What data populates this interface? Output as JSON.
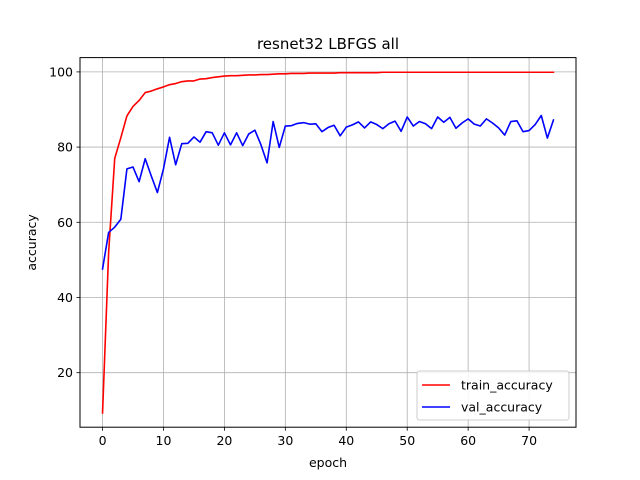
{
  "chart_data": {
    "type": "line",
    "title": "resnet32 LBFGS all",
    "xlabel": "epoch",
    "ylabel": "accuracy",
    "xlim": [
      -3.7,
      77.7
    ],
    "ylim": [
      5.5,
      103.8
    ],
    "xticks": [
      0,
      10,
      20,
      30,
      40,
      50,
      60,
      70
    ],
    "yticks": [
      20,
      40,
      60,
      80,
      100
    ],
    "grid": true,
    "legend_position": "lower right",
    "series": [
      {
        "name": "train_accuracy",
        "color": "#ff0000",
        "x": [
          0,
          1,
          2,
          3,
          4,
          5,
          6,
          7,
          8,
          9,
          10,
          11,
          12,
          13,
          14,
          15,
          16,
          17,
          18,
          19,
          20,
          21,
          22,
          23,
          24,
          25,
          26,
          27,
          28,
          29,
          30,
          31,
          32,
          33,
          34,
          35,
          36,
          37,
          38,
          39,
          40,
          41,
          42,
          43,
          44,
          45,
          46,
          47,
          48,
          49,
          50,
          51,
          52,
          53,
          54,
          55,
          56,
          57,
          58,
          59,
          60,
          61,
          62,
          63,
          64,
          65,
          66,
          67,
          68,
          69,
          70,
          71,
          72,
          73,
          74
        ],
        "values": [
          9.3,
          52,
          77,
          82.5,
          88.3,
          90.8,
          92.4,
          94.5,
          94.9,
          95.5,
          96,
          96.6,
          96.9,
          97.4,
          97.6,
          97.6,
          98.1,
          98.2,
          98.5,
          98.7,
          98.9,
          99,
          99,
          99.1,
          99.2,
          99.2,
          99.3,
          99.3,
          99.4,
          99.5,
          99.5,
          99.6,
          99.6,
          99.6,
          99.7,
          99.7,
          99.7,
          99.7,
          99.7,
          99.8,
          99.8,
          99.8,
          99.8,
          99.8,
          99.8,
          99.8,
          99.9,
          99.9,
          99.9,
          99.9,
          99.9,
          99.9,
          99.9,
          99.9,
          99.9,
          99.9,
          99.9,
          99.9,
          99.9,
          99.9,
          99.9,
          99.9,
          99.9,
          99.9,
          99.9,
          99.9,
          99.9,
          99.9,
          99.9,
          99.9,
          99.9,
          99.9,
          99.9,
          99.9,
          99.9
        ]
      },
      {
        "name": "val_accuracy",
        "color": "#0000ff",
        "x": [
          0,
          1,
          2,
          3,
          4,
          5,
          6,
          7,
          8,
          9,
          10,
          11,
          12,
          13,
          14,
          15,
          16,
          17,
          18,
          19,
          20,
          21,
          22,
          23,
          24,
          25,
          26,
          27,
          28,
          29,
          30,
          31,
          32,
          33,
          34,
          35,
          36,
          37,
          38,
          39,
          40,
          41,
          42,
          43,
          44,
          45,
          46,
          47,
          48,
          49,
          50,
          51,
          52,
          53,
          54,
          55,
          56,
          57,
          58,
          59,
          60,
          61,
          62,
          63,
          64,
          65,
          66,
          67,
          68,
          69,
          70,
          71,
          72,
          73,
          74
        ],
        "values": [
          47.6,
          57.3,
          58.7,
          60.8,
          74.2,
          74.7,
          70.8,
          76.9,
          72.3,
          67.9,
          74.2,
          82.6,
          75.3,
          80.9,
          81,
          82.7,
          81.3,
          84.1,
          83.8,
          80.5,
          83.8,
          80.6,
          83.8,
          80.4,
          83.5,
          84.5,
          80.6,
          75.8,
          86.8,
          79.9,
          85.6,
          85.7,
          86.3,
          86.5,
          86.1,
          86.2,
          84.1,
          85.2,
          85.8,
          83,
          85.3,
          85.9,
          86.7,
          85.1,
          86.7,
          86,
          84.9,
          86.2,
          86.9,
          84.2,
          88,
          85.6,
          86.8,
          86.2,
          84.9,
          88,
          86.6,
          87.9,
          85,
          86.4,
          87.5,
          86.1,
          85.6,
          87.5,
          86.4,
          85.1,
          83.2,
          86.8,
          87,
          84.1,
          84.4,
          86,
          88.4,
          82.4,
          87.2
        ]
      }
    ]
  }
}
